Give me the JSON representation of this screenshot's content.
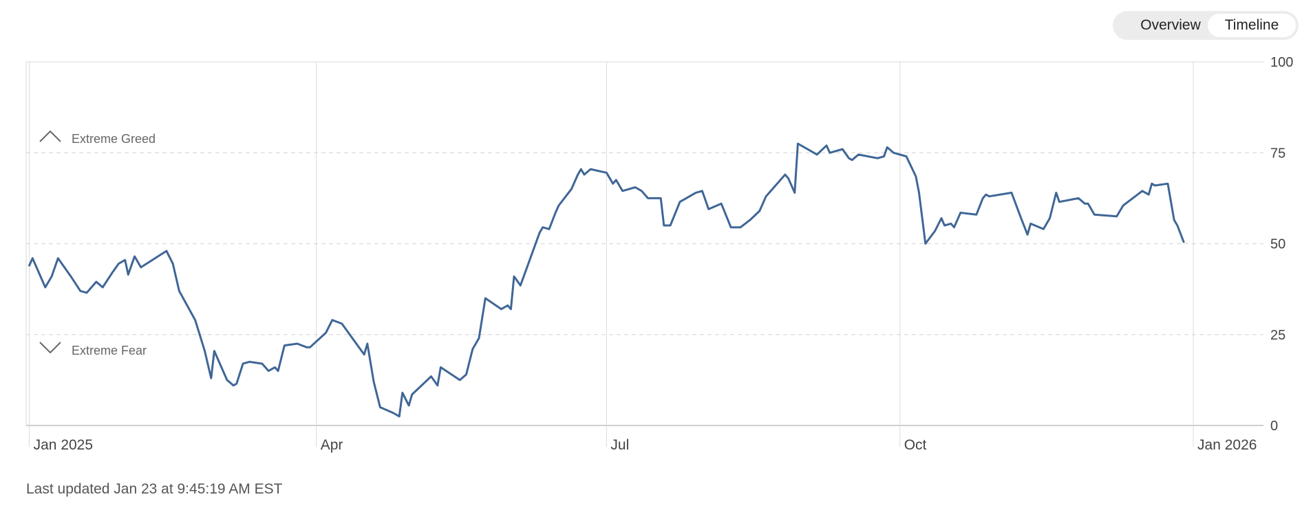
{
  "view_toggle": {
    "options": [
      "Overview",
      "Timeline"
    ],
    "selected": "Timeline"
  },
  "footer": {
    "last_updated": "Last updated Jan 23 at 9:45:19 AM EST"
  },
  "colors": {
    "line": "#3f6696",
    "grid": "#dadada",
    "zone_label": "#666666"
  },
  "chart_data": {
    "type": "line",
    "title": "",
    "xlabel": "",
    "ylabel": "",
    "ylim": [
      0,
      100
    ],
    "yticks": [
      0,
      25,
      50,
      75,
      100
    ],
    "xlim": [
      "2024-12-31",
      "2026-01-23"
    ],
    "xticks": [
      {
        "date": "2025-01-01",
        "label": "Jan 2025"
      },
      {
        "date": "2025-04-01",
        "label": "Apr"
      },
      {
        "date": "2025-07-01",
        "label": "Jul"
      },
      {
        "date": "2025-10-01",
        "label": "Oct"
      },
      {
        "date": "2026-01-01",
        "label": "Jan 2026"
      }
    ],
    "grid": true,
    "zones": [
      {
        "label": "Extreme Greed",
        "icon": "chevron-up-icon"
      },
      {
        "label": "Extreme Fear",
        "icon": "chevron-down-icon"
      }
    ],
    "series": [
      {
        "points": [
          [
            "2025-01-01",
            44
          ],
          [
            "2025-01-02",
            46
          ],
          [
            "2025-01-06",
            38
          ],
          [
            "2025-01-08",
            41
          ],
          [
            "2025-01-10",
            46
          ],
          [
            "2025-01-14",
            41
          ],
          [
            "2025-01-17",
            37
          ],
          [
            "2025-01-19",
            36.5
          ],
          [
            "2025-01-22",
            39.5
          ],
          [
            "2025-01-24",
            38
          ],
          [
            "2025-01-27",
            42
          ],
          [
            "2025-01-29",
            44.5
          ],
          [
            "2025-01-31",
            45.5
          ],
          [
            "2025-02-01",
            41.5
          ],
          [
            "2025-02-03",
            46.5
          ],
          [
            "2025-02-05",
            43.5
          ],
          [
            "2025-02-13",
            48
          ],
          [
            "2025-02-15",
            44.5
          ],
          [
            "2025-02-17",
            37
          ],
          [
            "2025-02-22",
            29
          ],
          [
            "2025-02-25",
            20.5
          ],
          [
            "2025-02-27",
            13
          ],
          [
            "2025-02-28",
            20.5
          ],
          [
            "2025-03-04",
            12.5
          ],
          [
            "2025-03-06",
            11
          ],
          [
            "2025-03-07",
            11.5
          ],
          [
            "2025-03-09",
            17
          ],
          [
            "2025-03-11",
            17.5
          ],
          [
            "2025-03-15",
            17
          ],
          [
            "2025-03-17",
            15
          ],
          [
            "2025-03-19",
            16
          ],
          [
            "2025-03-20",
            15
          ],
          [
            "2025-03-22",
            22
          ],
          [
            "2025-03-26",
            22.5
          ],
          [
            "2025-03-29",
            21.5
          ],
          [
            "2025-03-30",
            21.5
          ],
          [
            "2025-04-04",
            25.5
          ],
          [
            "2025-04-06",
            29
          ],
          [
            "2025-04-09",
            28
          ],
          [
            "2025-04-16",
            19.5
          ],
          [
            "2025-04-17",
            22.5
          ],
          [
            "2025-04-19",
            12
          ],
          [
            "2025-04-21",
            5
          ],
          [
            "2025-04-25",
            3.5
          ],
          [
            "2025-04-27",
            2.5
          ],
          [
            "2025-04-28",
            9
          ],
          [
            "2025-04-30",
            5.5
          ],
          [
            "2025-05-01",
            8.5
          ],
          [
            "2025-05-07",
            13.5
          ],
          [
            "2025-05-09",
            11
          ],
          [
            "2025-05-10",
            16
          ],
          [
            "2025-05-16",
            12.5
          ],
          [
            "2025-05-18",
            14
          ],
          [
            "2025-05-20",
            21
          ],
          [
            "2025-05-22",
            24
          ],
          [
            "2025-05-24",
            35
          ],
          [
            "2025-05-29",
            32
          ],
          [
            "2025-05-31",
            33
          ],
          [
            "2025-06-01",
            32
          ],
          [
            "2025-06-02",
            41
          ],
          [
            "2025-06-04",
            38.5
          ],
          [
            "2025-06-10",
            53
          ],
          [
            "2025-06-11",
            54.5
          ],
          [
            "2025-06-13",
            54
          ],
          [
            "2025-06-15",
            58.5
          ],
          [
            "2025-06-16",
            60.5
          ],
          [
            "2025-06-20",
            65
          ],
          [
            "2025-06-22",
            69
          ],
          [
            "2025-06-23",
            70.5
          ],
          [
            "2025-06-24",
            69
          ],
          [
            "2025-06-26",
            70.5
          ],
          [
            "2025-07-01",
            69.5
          ],
          [
            "2025-07-03",
            66.5
          ],
          [
            "2025-07-04",
            67.5
          ],
          [
            "2025-07-06",
            64.5
          ],
          [
            "2025-07-10",
            65.5
          ],
          [
            "2025-07-12",
            64.5
          ],
          [
            "2025-07-14",
            62.5
          ],
          [
            "2025-07-18",
            62.5
          ],
          [
            "2025-07-19",
            55
          ],
          [
            "2025-07-21",
            55
          ],
          [
            "2025-07-24",
            61.5
          ],
          [
            "2025-07-29",
            64
          ],
          [
            "2025-07-31",
            64.5
          ],
          [
            "2025-08-02",
            59.5
          ],
          [
            "2025-08-06",
            61
          ],
          [
            "2025-08-09",
            54.5
          ],
          [
            "2025-08-12",
            54.5
          ],
          [
            "2025-08-15",
            56.5
          ],
          [
            "2025-08-18",
            59
          ],
          [
            "2025-08-20",
            63
          ],
          [
            "2025-08-26",
            69
          ],
          [
            "2025-08-27",
            68
          ],
          [
            "2025-08-29",
            64
          ],
          [
            "2025-08-30",
            77.5
          ],
          [
            "2025-09-03",
            75.5
          ],
          [
            "2025-09-05",
            74.5
          ],
          [
            "2025-09-08",
            77
          ],
          [
            "2025-09-09",
            75
          ],
          [
            "2025-09-13",
            76
          ],
          [
            "2025-09-15",
            73.5
          ],
          [
            "2025-09-16",
            73
          ],
          [
            "2025-09-18",
            74.5
          ],
          [
            "2025-09-24",
            73.5
          ],
          [
            "2025-09-26",
            74
          ],
          [
            "2025-09-27",
            76.5
          ],
          [
            "2025-09-29",
            75
          ],
          [
            "2025-10-03",
            74
          ],
          [
            "2025-10-06",
            68.5
          ],
          [
            "2025-10-07",
            64
          ],
          [
            "2025-10-09",
            50
          ],
          [
            "2025-10-12",
            53.5
          ],
          [
            "2025-10-14",
            57
          ],
          [
            "2025-10-15",
            55
          ],
          [
            "2025-10-17",
            55.5
          ],
          [
            "2025-10-18",
            54.5
          ],
          [
            "2025-10-20",
            58.5
          ],
          [
            "2025-10-25",
            58
          ],
          [
            "2025-10-27",
            62.5
          ],
          [
            "2025-10-28",
            63.5
          ],
          [
            "2025-10-29",
            63
          ],
          [
            "2025-11-05",
            64
          ],
          [
            "2025-11-08",
            57
          ],
          [
            "2025-11-10",
            52.5
          ],
          [
            "2025-11-11",
            55.5
          ],
          [
            "2025-11-15",
            54
          ],
          [
            "2025-11-17",
            57
          ],
          [
            "2025-11-19",
            64
          ],
          [
            "2025-11-20",
            61.5
          ],
          [
            "2025-11-26",
            62.5
          ],
          [
            "2025-11-28",
            61
          ],
          [
            "2025-11-29",
            61
          ],
          [
            "2025-12-01",
            58
          ],
          [
            "2025-12-08",
            57.5
          ],
          [
            "2025-12-10",
            60.5
          ],
          [
            "2025-12-16",
            64.5
          ],
          [
            "2025-12-18",
            63.5
          ],
          [
            "2025-12-19",
            66.5
          ],
          [
            "2025-12-20",
            66
          ],
          [
            "2025-12-24",
            66.5
          ],
          [
            "2025-12-26",
            56.5
          ],
          [
            "2025-12-27",
            55
          ],
          [
            "2025-12-29",
            50.5
          ]
        ]
      }
    ]
  }
}
